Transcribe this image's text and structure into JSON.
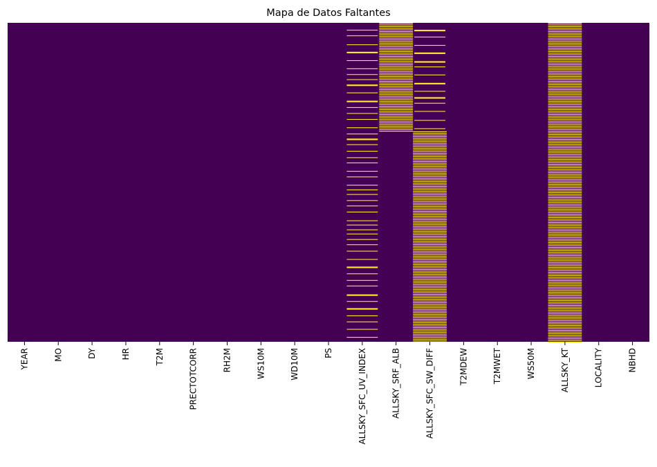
{
  "chart_data": {
    "type": "heatmap",
    "title": "Mapa de Datos Faltantes",
    "xlabel": "",
    "ylabel": "",
    "colors": {
      "present": "#440154",
      "missing": "#fde725"
    },
    "colormap": "viridis",
    "colorbar": false,
    "y_tick_labels": false,
    "columns": [
      {
        "name": "YEAR",
        "missing_pattern": "none"
      },
      {
        "name": "MO",
        "missing_pattern": "none"
      },
      {
        "name": "DY",
        "missing_pattern": "none"
      },
      {
        "name": "HR",
        "missing_pattern": "none"
      },
      {
        "name": "T2M",
        "missing_pattern": "none"
      },
      {
        "name": "PRECTOTCORR",
        "missing_pattern": "none"
      },
      {
        "name": "RH2M",
        "missing_pattern": "none"
      },
      {
        "name": "WS10M",
        "missing_pattern": "none"
      },
      {
        "name": "WD10M",
        "missing_pattern": "none"
      },
      {
        "name": "PS",
        "missing_pattern": "none"
      },
      {
        "name": "ALLSKY_SFC_UV_INDEX",
        "missing_pattern": "sparse"
      },
      {
        "name": "ALLSKY_SRF_ALB",
        "missing_pattern": "dense-top"
      },
      {
        "name": "ALLSKY_SFC_SW_DIFF",
        "missing_pattern": "sparse-top-dense-bottom"
      },
      {
        "name": "T2MDEW",
        "missing_pattern": "none"
      },
      {
        "name": "T2MWET",
        "missing_pattern": "none"
      },
      {
        "name": "WS50M",
        "missing_pattern": "none"
      },
      {
        "name": "ALLSKY_KT",
        "missing_pattern": "dense"
      },
      {
        "name": "LOCALITY",
        "missing_pattern": "none"
      },
      {
        "name": "NBHD",
        "missing_pattern": "none"
      }
    ]
  }
}
